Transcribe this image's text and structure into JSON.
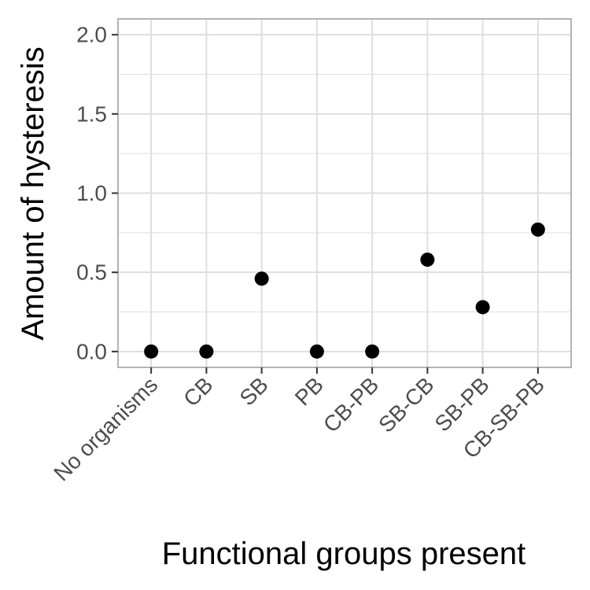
{
  "chart_data": {
    "type": "scatter",
    "xlabel": "Functional groups present",
    "ylabel": "Amount of hysteresis",
    "categories": [
      "No organisms",
      "CB",
      "SB",
      "PB",
      "CB-PB",
      "SB-CB",
      "SB-PB",
      "CB-SB-PB"
    ],
    "values": [
      0.0,
      0.0,
      0.46,
      0.0,
      0.0,
      0.58,
      0.28,
      0.77
    ],
    "ylim": [
      -0.1,
      2.1
    ],
    "y_ticks": [
      0.0,
      0.5,
      1.0,
      1.5,
      2.0
    ],
    "y_tick_labels": [
      "0.0",
      "0.5",
      "1.0",
      "1.5",
      "2.0"
    ],
    "grid": true,
    "theme": "light",
    "point_color": "#000000",
    "grid_color": "#dedede",
    "panel_border_color": "#b3b3b3"
  }
}
